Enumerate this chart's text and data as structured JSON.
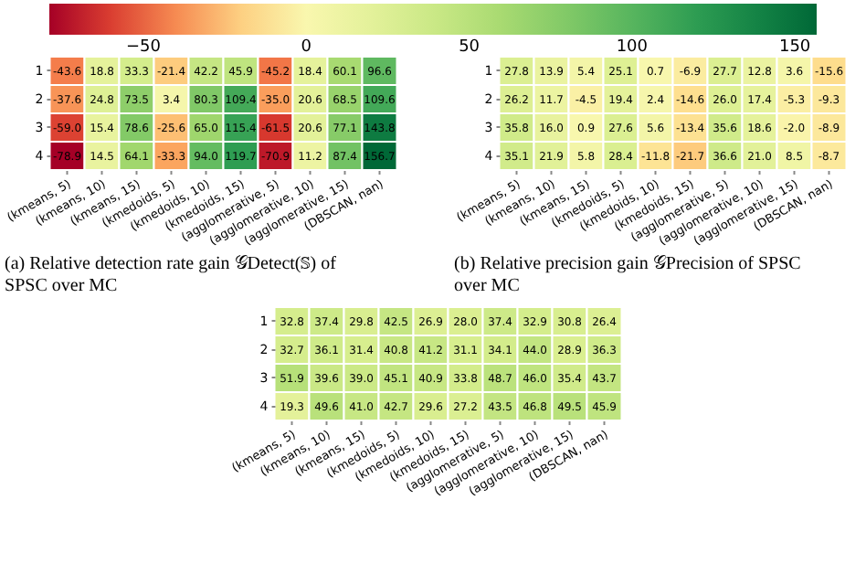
{
  "chart_data": [
    {
      "type": "heatmap",
      "categories": [
        "(kmeans, 5)",
        "(kmeans, 10)",
        "(kmeans, 15)",
        "(kmedoids, 5)",
        "(kmedoids, 10)",
        "(kmedoids, 15)",
        "(agglomerative, 5)",
        "(agglomerative, 10)",
        "(agglomerative, 15)",
        "(DBSCAN, nan)"
      ],
      "y_categories": [
        "1",
        "2",
        "3",
        "4"
      ],
      "cells": [
        [
          -43.6,
          18.8,
          33.3,
          -21.4,
          42.2,
          45.9,
          -45.2,
          18.4,
          60.1,
          96.6
        ],
        [
          -37.6,
          24.8,
          73.5,
          3.4,
          80.3,
          109.4,
          -35.0,
          20.6,
          68.5,
          109.6
        ],
        [
          -59.0,
          15.4,
          78.6,
          -25.6,
          65.0,
          115.4,
          -61.5,
          20.6,
          77.1,
          143.8
        ],
        [
          -78.9,
          14.5,
          64.1,
          -33.3,
          94.0,
          119.7,
          -70.9,
          11.2,
          87.4,
          156.7
        ]
      ],
      "cell_labels": [
        [
          "-43.6",
          "18.8",
          "33.3",
          "-21.4",
          "42.2",
          "45.9",
          "-45.2",
          "18.4",
          "60.1",
          "96.6"
        ],
        [
          "-37.6",
          "24.8",
          "73.5",
          "3.4",
          "80.3",
          "109.4",
          "-35.0",
          "20.6",
          "68.5",
          "109.6"
        ],
        [
          "-59.0",
          "15.4",
          "78.6",
          "-25.6",
          "65.0",
          "115.4",
          "-61.5",
          "20.6",
          "77.1",
          "143.8"
        ],
        [
          "-78.9",
          "14.5",
          "64.1",
          "-33.3",
          "94.0",
          "119.7",
          "-70.9",
          "11.2",
          "87.4",
          "156.7"
        ]
      ],
      "clim": [
        -78.9,
        156.7
      ],
      "cticks": [
        -50,
        0,
        50,
        100,
        150
      ],
      "annotations": [
        "(a) Relative detection rate gain 𝒢Detect(𝕊) of SPSC over MC"
      ]
    },
    {
      "type": "heatmap",
      "categories": [
        "(kmeans, 5)",
        "(kmeans, 10)",
        "(kmeans, 15)",
        "(kmedoids, 5)",
        "(kmedoids, 10)",
        "(kmedoids, 15)",
        "(agglomerative, 5)",
        "(agglomerative, 10)",
        "(agglomerative, 15)",
        "(DBSCAN, nan)"
      ],
      "y_categories": [
        "1",
        "2",
        "3",
        "4"
      ],
      "cells": [
        [
          27.8,
          13.9,
          5.4,
          25.1,
          0.7,
          -6.9,
          27.7,
          12.8,
          3.6,
          -15.6
        ],
        [
          26.2,
          11.7,
          -4.5,
          19.4,
          2.4,
          -14.6,
          26.0,
          17.4,
          -5.3,
          -9.3
        ],
        [
          35.8,
          16.0,
          0.9,
          27.6,
          5.6,
          -13.4,
          35.6,
          18.6,
          -2.0,
          -8.9
        ],
        [
          35.1,
          21.9,
          5.8,
          28.4,
          -11.8,
          -21.7,
          36.6,
          21.0,
          8.5,
          -8.7
        ]
      ],
      "cell_labels": [
        [
          "27.8",
          "13.9",
          "5.4",
          "25.1",
          "0.7",
          "-6.9",
          "27.7",
          "12.8",
          "3.6",
          "-15.6"
        ],
        [
          "26.2",
          "11.7",
          "-4.5",
          "19.4",
          "2.4",
          "-14.6",
          "26.0",
          "17.4",
          "-5.3",
          "-9.3"
        ],
        [
          "35.8",
          "16.0",
          "0.9",
          "27.6",
          "5.6",
          "-13.4",
          "35.6",
          "18.6",
          "-2.0",
          "-8.9"
        ],
        [
          "35.1",
          "21.9",
          "5.8",
          "28.4",
          "-11.8",
          "-21.7",
          "36.6",
          "21.0",
          "8.5",
          "-8.7"
        ]
      ],
      "annotations": [
        "(b) Relative precision gain 𝒢Precision of SPSC over MC"
      ]
    },
    {
      "type": "heatmap",
      "categories": [
        "(kmeans, 5)",
        "(kmeans, 10)",
        "(kmeans, 15)",
        "(kmedoids, 5)",
        "(kmedoids, 10)",
        "(kmedoids, 15)",
        "(agglomerative, 5)",
        "(agglomerative, 10)",
        "(agglomerative, 15)",
        "(DBSCAN, nan)"
      ],
      "y_categories": [
        "1",
        "2",
        "3",
        "4"
      ],
      "cells": [
        [
          32.8,
          37.4,
          29.8,
          42.5,
          26.9,
          28.0,
          37.4,
          32.9,
          30.8,
          26.4
        ],
        [
          32.7,
          36.1,
          31.4,
          40.8,
          41.2,
          31.1,
          34.1,
          44.0,
          28.9,
          36.3
        ],
        [
          51.9,
          39.6,
          39.0,
          45.1,
          40.9,
          33.8,
          48.7,
          46.0,
          35.4,
          43.7
        ],
        [
          19.3,
          49.6,
          41.0,
          42.7,
          29.6,
          27.2,
          43.5,
          46.8,
          49.5,
          45.9
        ]
      ],
      "cell_labels": [
        [
          "32.8",
          "37.4",
          "29.8",
          "42.5",
          "26.9",
          "28.0",
          "37.4",
          "32.9",
          "30.8",
          "26.4"
        ],
        [
          "32.7",
          "36.1",
          "31.4",
          "40.8",
          "41.2",
          "31.1",
          "34.1",
          "44.0",
          "28.9",
          "36.3"
        ],
        [
          "51.9",
          "39.6",
          "39.0",
          "45.1",
          "40.9",
          "33.8",
          "48.7",
          "46.0",
          "35.4",
          "43.7"
        ],
        [
          "19.3",
          "49.6",
          "41.0",
          "42.7",
          "29.6",
          "27.2",
          "43.5",
          "46.8",
          "49.5",
          "45.9"
        ]
      ]
    }
  ]
}
